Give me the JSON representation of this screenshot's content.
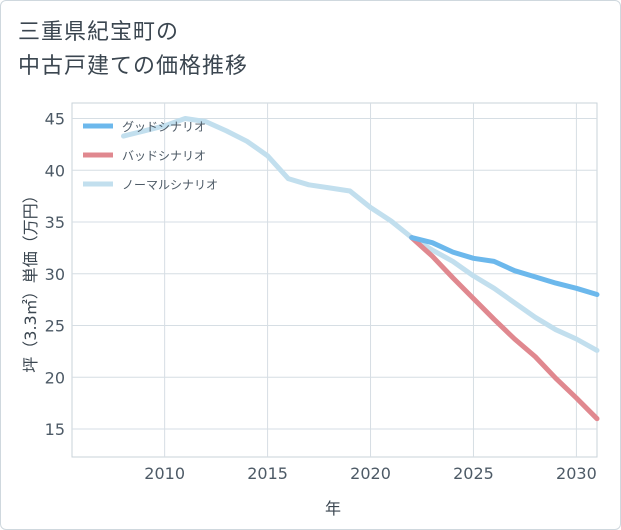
{
  "title": {
    "line1": "三重県紀宝町の",
    "line2": "中古戸建ての価格推移"
  },
  "chart_data": {
    "type": "line",
    "title": "三重県紀宝町の 中古戸建ての価格推移",
    "xlabel": "年",
    "ylabel": "坪（3.3㎡）単価（万円）",
    "xlim": [
      2005.5,
      2031
    ],
    "ylim": [
      12.3,
      46.5
    ],
    "xticks": [
      2010,
      2015,
      2020,
      2025,
      2030
    ],
    "yticks": [
      15,
      20,
      25,
      30,
      35,
      40,
      45
    ],
    "grid": true,
    "legend_position": "top-left",
    "series": [
      {
        "name": "グッドシナリオ",
        "color": "#6cb8ec",
        "x": [
          2022,
          2023,
          2024,
          2025,
          2026,
          2027,
          2028,
          2029,
          2030,
          2031
        ],
        "y": [
          33.5,
          33.0,
          32.1,
          31.5,
          31.2,
          30.3,
          29.7,
          29.1,
          28.6,
          28.0
        ]
      },
      {
        "name": "バッドシナリオ",
        "color": "#e0888f",
        "x": [
          2022,
          2023,
          2024,
          2025,
          2026,
          2027,
          2028,
          2029,
          2030,
          2031
        ],
        "y": [
          33.5,
          31.7,
          29.6,
          27.6,
          25.6,
          23.7,
          22.0,
          19.9,
          18.0,
          16.0
        ]
      },
      {
        "name": "ノーマルシナリオ",
        "color": "#c2dfee",
        "x": [
          2008,
          2009,
          2010,
          2011,
          2012,
          2013,
          2014,
          2015,
          2016,
          2017,
          2018,
          2019,
          2020,
          2021,
          2022,
          2023,
          2024,
          2025,
          2026,
          2027,
          2028,
          2029,
          2030,
          2031
        ],
        "y": [
          43.3,
          43.8,
          44.3,
          45.0,
          44.7,
          43.8,
          42.8,
          41.4,
          39.2,
          38.6,
          38.3,
          38.0,
          36.4,
          35.1,
          33.5,
          32.3,
          31.2,
          29.8,
          28.6,
          27.2,
          25.8,
          24.6,
          23.7,
          22.6
        ]
      }
    ]
  }
}
